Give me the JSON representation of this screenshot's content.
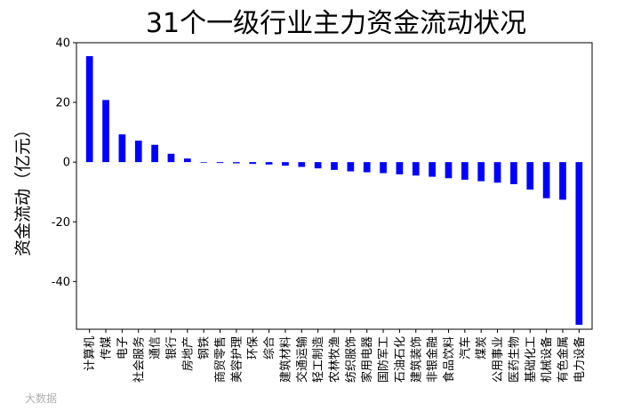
{
  "watermark": "大数据",
  "chart_data": {
    "type": "bar",
    "title": "31个一级行业主力资金流动状况",
    "xlabel": "",
    "ylabel": "资金流动（亿元）",
    "ylim": [
      -56,
      40
    ],
    "yticks": [
      -40,
      -20,
      0,
      20,
      40
    ],
    "grid": false,
    "bar_color": "#0000ff",
    "categories": [
      "计算机",
      "传媒",
      "电子",
      "社会服务",
      "通信",
      "银行",
      "房地产",
      "钢铁",
      "商贸零售",
      "美容护理",
      "环保",
      "综合",
      "建筑材料",
      "交通运输",
      "轻工制造",
      "农林牧渔",
      "纺织服饰",
      "家用电器",
      "国防军工",
      "石油石化",
      "建筑装饰",
      "非银金融",
      "食品饮料",
      "汽车",
      "煤炭",
      "公用事业",
      "医药生物",
      "基础化工",
      "机械设备",
      "有色金属",
      "电力设备"
    ],
    "values": [
      35.5,
      20.8,
      9.3,
      7.2,
      5.8,
      2.8,
      1.2,
      -0.2,
      -0.3,
      -0.4,
      -0.6,
      -0.8,
      -1.2,
      -1.6,
      -2.1,
      -2.6,
      -3.1,
      -3.4,
      -3.7,
      -4.1,
      -4.5,
      -4.9,
      -5.4,
      -5.9,
      -6.4,
      -6.9,
      -7.4,
      -9.2,
      -12.1,
      -12.6,
      -54.5
    ]
  }
}
